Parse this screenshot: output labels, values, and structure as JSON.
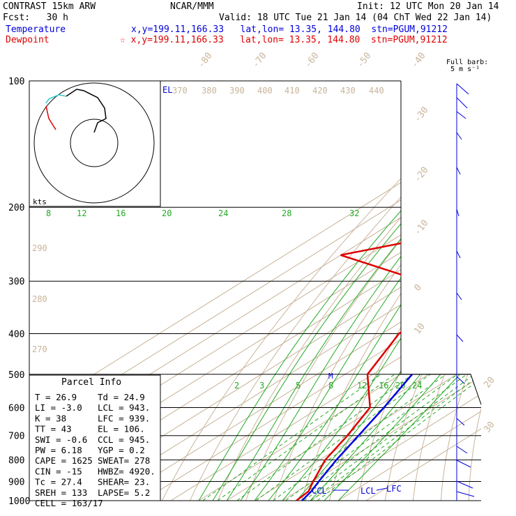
{
  "header": {
    "line1_left": "CONTRAST 15km ARW",
    "line1_mid": "NCAR/MMM",
    "line1_right": "Init: 12 UTC Mon 20 Jan 14",
    "line2_left": "Fcst:   30 h",
    "line2_right": "Valid: 18 UTC Tue 21 Jan 14 (04 ChT Wed 22 Jan 14)",
    "temp_label": "Temperature",
    "temp_info": "x,y=199.11,166.33   lat,lon= 13.35, 144.80  stn=PGUM,91212",
    "dew_label": "Dewpoint",
    "dew_info": "☆ x,y=199.11,166.33   lat,lon= 13.35, 144.80  stn=PGUM,91212",
    "barb_label1": "Full barb:",
    "barb_label2": "5 m s⁻¹"
  },
  "colors": {
    "temperature": "#0000dd",
    "dewpoint": "#dd0000",
    "isotherm": "#c8b49a",
    "mixing_ratio": "#22aa22",
    "isobar": "#000000"
  },
  "parcel_info": {
    "title": "Parcel Info",
    "rows": [
      [
        "T   =   26.9",
        "Td =  24.9"
      ],
      [
        "LI  =   -3.0",
        "LCL =  943."
      ],
      [
        "K   =     38",
        "LFC =  939."
      ],
      [
        "TT  =     43",
        "EL  =  106."
      ],
      [
        "SWI =   -0.6",
        "CCL =  945."
      ],
      [
        "PW  =   6.18",
        "YGP =   0.2"
      ],
      [
        "CAPE =  1625",
        "SWEAT=  278"
      ],
      [
        "CIN =    -15",
        "HWBZ= 4920."
      ],
      [
        "Tc =    27.4",
        "SHEAR=  23."
      ],
      [
        "SREH =   133",
        "LAPSE=  5.2"
      ],
      [
        "CELL = 163/17",
        ""
      ]
    ]
  },
  "chart_data": {
    "type": "line",
    "title": "",
    "ylabel": "",
    "xlabel": "",
    "y_scale": "log-pressure",
    "ylim": [
      1000,
      100
    ],
    "pressure_labels": [
      "100",
      "200",
      "300",
      "400",
      "500",
      "600",
      "700",
      "800",
      "900",
      "1000"
    ],
    "isotherm_labels": [
      "-80",
      "-70",
      "-60",
      "-50",
      "-40",
      "-30",
      "-20",
      "-10",
      "0",
      "10",
      "20",
      "30",
      "40"
    ],
    "theta_labels": [
      "370",
      "380",
      "390",
      "400",
      "410",
      "420",
      "430",
      "440",
      "290",
      "280",
      "270"
    ],
    "mixing_ratio_labels_upper": [
      "8",
      "12",
      "16",
      "20",
      "24",
      "28",
      "32"
    ],
    "mixing_ratio_labels_lower": [
      "2",
      "3",
      "5",
      "8",
      "12",
      "16",
      "20",
      "24"
    ],
    "hodograph": {
      "units_label": "kts"
    },
    "series": [
      {
        "id": "temperature",
        "points": [
          [
            100,
            -77
          ],
          [
            150,
            -68
          ],
          [
            200,
            -56
          ],
          [
            250,
            -45
          ],
          [
            300,
            -34
          ],
          [
            400,
            -17
          ],
          [
            500,
            -6
          ],
          [
            600,
            3
          ],
          [
            700,
            10
          ],
          [
            800,
            16
          ],
          [
            900,
            22
          ],
          [
            950,
            25
          ],
          [
            1000,
            27
          ]
        ]
      },
      {
        "id": "dewpoint",
        "points": [
          [
            100,
            -87
          ],
          [
            130,
            -90
          ],
          [
            150,
            -87
          ],
          [
            190,
            -70
          ],
          [
            230,
            -72
          ],
          [
            260,
            -100
          ],
          [
            300,
            -56
          ],
          [
            350,
            -36
          ],
          [
            400,
            -34
          ],
          [
            500,
            -22
          ],
          [
            600,
            -2
          ],
          [
            700,
            6
          ],
          [
            800,
            12
          ],
          [
            900,
            20
          ],
          [
            950,
            24
          ],
          [
            1000,
            25
          ]
        ]
      }
    ],
    "annotations": [
      "EL",
      "M",
      "CCL",
      "LCL",
      "LFC"
    ]
  }
}
